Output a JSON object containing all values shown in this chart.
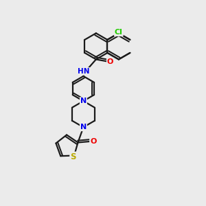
{
  "background_color": "#ebebeb",
  "bond_color": "#1a1a1a",
  "bond_width": 1.6,
  "atom_colors": {
    "N": "#0000ee",
    "O": "#ee0000",
    "Cl": "#22cc00",
    "S": "#bbaa00",
    "C": "#1a1a1a"
  },
  "figsize": [
    3.0,
    3.0
  ],
  "dpi": 100
}
